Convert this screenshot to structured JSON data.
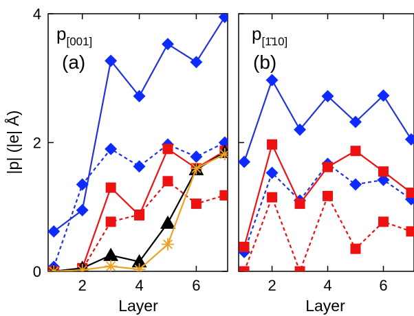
{
  "colors": {
    "blue": "#2233dd",
    "blue_marker": "#0d2bff",
    "red": "#ee1111",
    "black": "#000000",
    "orange": "#f0a020"
  },
  "ylabel": "|p| (|e| Å)",
  "xlabel": "Layer",
  "chart_data": [
    {
      "type": "line",
      "panel_label": "(a)",
      "title_main": "p",
      "title_sub": "[001]",
      "xlabel": "Layer",
      "ylabel": "|p| (|e| Å)",
      "xlim": [
        0.8,
        7.1
      ],
      "ylim": [
        0,
        4
      ],
      "xticks": [
        "2",
        "4",
        "6"
      ],
      "yticks": [
        "0",
        "2",
        "4"
      ],
      "series": [
        {
          "style": "blue-solid-diamond",
          "x": [
            1,
            2,
            3,
            4,
            5,
            6,
            7
          ],
          "y": [
            0.62,
            0.95,
            3.27,
            2.72,
            3.53,
            3.25,
            3.95
          ]
        },
        {
          "style": "blue-dashed-diamond",
          "x": [
            1,
            2,
            3,
            4,
            5,
            6,
            7
          ],
          "y": [
            0.07,
            1.35,
            1.9,
            1.63,
            1.97,
            1.78,
            2.0
          ]
        },
        {
          "style": "red-solid-square",
          "x": [
            1,
            2,
            3,
            4,
            5,
            6,
            7
          ],
          "y": [
            0.0,
            0.05,
            1.3,
            0.87,
            1.9,
            1.6,
            1.87
          ]
        },
        {
          "style": "red-dashed-square",
          "x": [
            1,
            2,
            3,
            4,
            5,
            6,
            7
          ],
          "y": [
            0.0,
            0.03,
            0.77,
            0.88,
            1.4,
            1.05,
            1.18
          ]
        },
        {
          "style": "black-solid-triangle",
          "x": [
            1,
            2,
            3,
            4,
            5,
            6,
            7
          ],
          "y": [
            0.0,
            0.05,
            0.25,
            0.15,
            0.75,
            1.58,
            1.85
          ]
        },
        {
          "style": "orange-solid-star",
          "x": [
            1,
            2,
            3,
            4,
            5,
            6,
            7
          ],
          "y": [
            0.0,
            0.02,
            0.08,
            0.03,
            0.42,
            1.6,
            1.82
          ]
        }
      ]
    },
    {
      "type": "line",
      "panel_label": "(b)",
      "title_main": "p",
      "title_sub": "[1̄10]",
      "xlabel": "Layer",
      "ylabel": "",
      "xlim": [
        0.8,
        7.1
      ],
      "ylim": [
        0,
        4
      ],
      "xticks": [
        "2",
        "4",
        "6"
      ],
      "yticks": [],
      "series": [
        {
          "style": "blue-solid-diamond",
          "x": [
            1,
            2,
            3,
            4,
            5,
            6,
            7
          ],
          "y": [
            1.7,
            2.97,
            2.2,
            2.72,
            2.32,
            2.73,
            2.05
          ]
        },
        {
          "style": "blue-dashed-diamond",
          "x": [
            1,
            2,
            3,
            4,
            5,
            6,
            7
          ],
          "y": [
            0.3,
            1.53,
            1.1,
            1.67,
            1.35,
            1.42,
            1.12
          ]
        },
        {
          "style": "red-solid-square",
          "x": [
            1,
            2,
            3,
            4,
            5,
            6,
            7
          ],
          "y": [
            0.38,
            1.97,
            1.05,
            1.62,
            1.87,
            1.55,
            1.22
          ]
        },
        {
          "style": "red-dashed-square",
          "x": [
            1,
            2,
            3,
            4,
            5,
            6,
            7
          ],
          "y": [
            0.0,
            1.15,
            0.0,
            1.17,
            0.35,
            0.77,
            0.62
          ]
        }
      ]
    }
  ]
}
